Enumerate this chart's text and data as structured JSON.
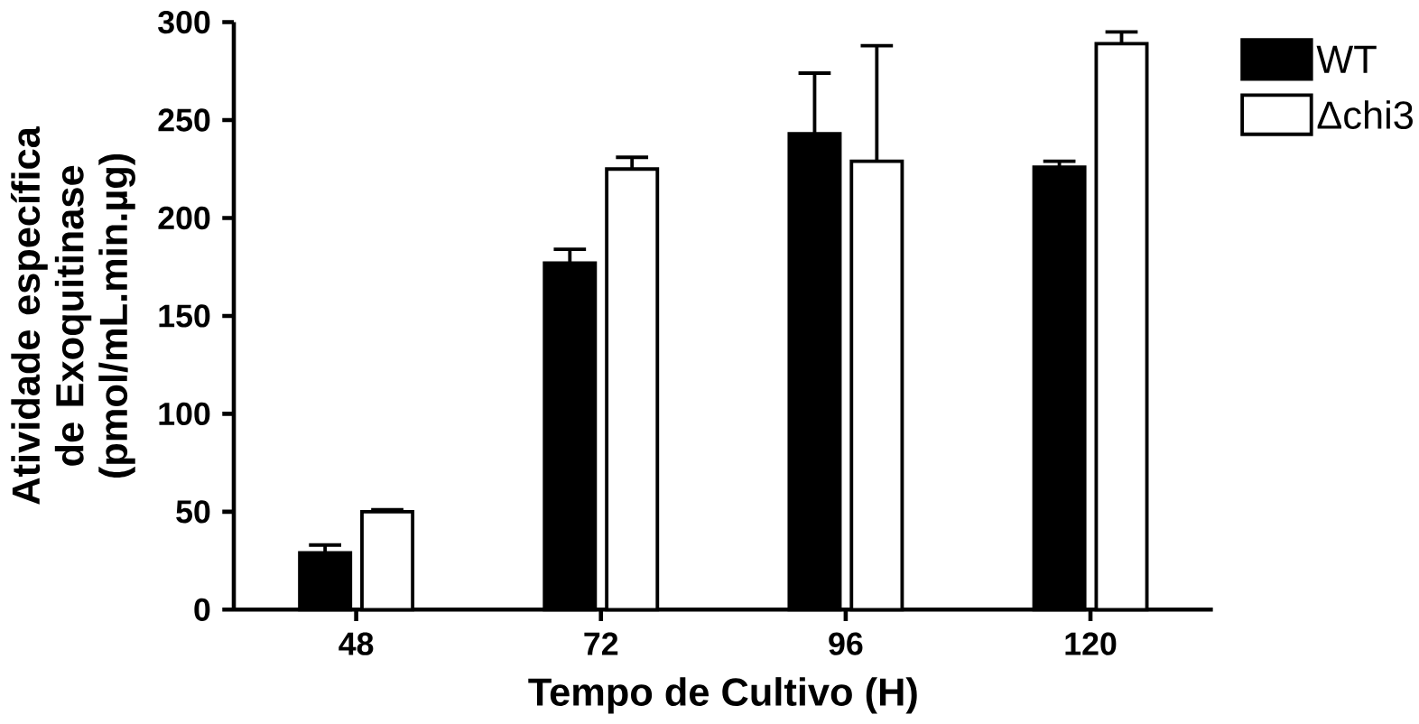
{
  "chart_data": {
    "type": "bar",
    "xlabel": "Tempo de Cultivo (H)",
    "ylabel": "Atividade específica de Exoquitinase (pmol/mL.min.µg)",
    "categories": [
      "48",
      "72",
      "96",
      "120"
    ],
    "series": [
      {
        "name": "WT",
        "color": "#000000",
        "values": [
          29,
          177,
          243,
          226
        ],
        "errors": [
          [
            29,
            33
          ],
          [
            177,
            184
          ],
          [
            243,
            274
          ],
          [
            226,
            229
          ]
        ]
      },
      {
        "name": "Δchi3",
        "color": "#ffffff",
        "values": [
          50,
          225,
          229,
          289
        ],
        "errors": [
          [
            50,
            51
          ],
          [
            225,
            231
          ],
          [
            229,
            288
          ],
          [
            289,
            295
          ]
        ]
      }
    ],
    "ylim": [
      0,
      300
    ],
    "yticks": [
      0,
      50,
      100,
      150,
      200,
      250,
      300
    ],
    "grid": false,
    "legend": "top right"
  }
}
